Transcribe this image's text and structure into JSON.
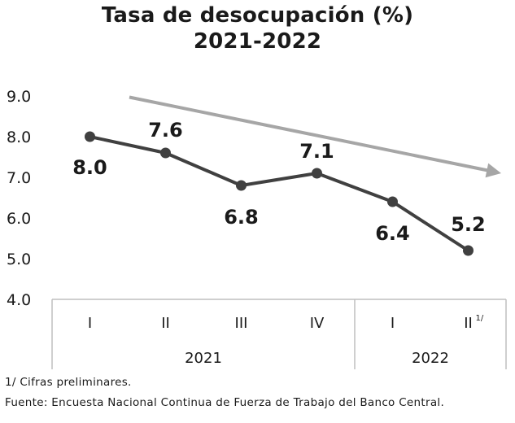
{
  "title": "Tasa de desocupación (%)",
  "subtitle": "2021-2022",
  "chart_data": {
    "type": "line",
    "title": "Tasa de desocupación (%)",
    "subtitle": "2021-2022",
    "categories": [
      "I",
      "II",
      "III",
      "IV",
      "I",
      "II"
    ],
    "category_superscripts": [
      "",
      "",
      "",
      "",
      "",
      "1/"
    ],
    "groups": [
      {
        "label": "2021",
        "count": 4
      },
      {
        "label": "2022",
        "count": 2
      }
    ],
    "values": [
      8.0,
      7.6,
      6.8,
      7.1,
      6.4,
      5.2
    ],
    "data_labels": [
      "8.0",
      "7.6",
      "6.8",
      "7.1",
      "6.4",
      "5.2"
    ],
    "ylim": [
      4.0,
      9.0
    ],
    "yticks": [
      "4.0",
      "5.0",
      "6.0",
      "7.0",
      "8.0",
      "9.0"
    ],
    "grid": false,
    "trend_arrow": true,
    "colors": {
      "line": "#404040",
      "marker": "#404040",
      "trend": "#a6a6a6",
      "axis": "#bfbfbf"
    }
  },
  "footnotes": {
    "note1": "1/ Cifras preliminares.",
    "source": "Fuente: Encuesta Nacional Continua de Fuerza de Trabajo del Banco Central."
  }
}
